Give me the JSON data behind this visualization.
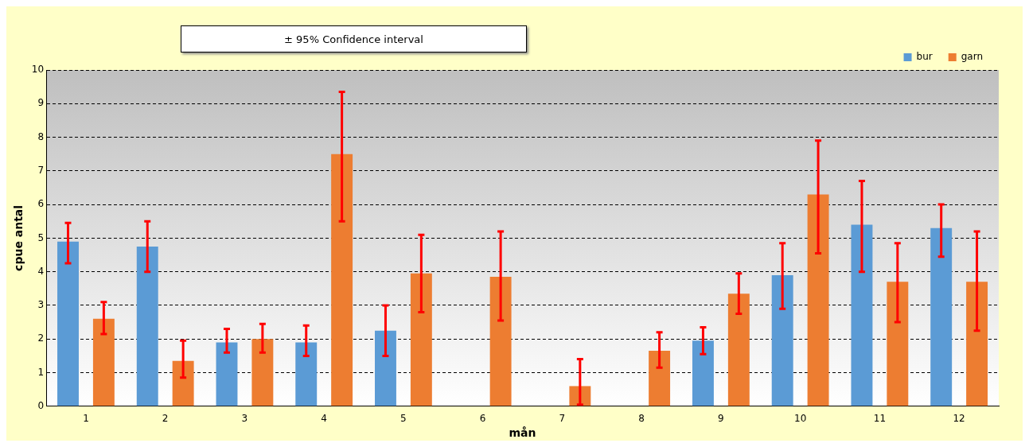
{
  "chart_data": {
    "type": "bar",
    "xlabel": "mån",
    "ylabel": "cpue antal",
    "annotations": [
      "± 95% Confidence interval"
    ],
    "categories": [
      "1",
      "2",
      "3",
      "4",
      "5",
      "6",
      "7",
      "8",
      "9",
      "10",
      "11",
      "12"
    ],
    "series": [
      {
        "name": "bur",
        "color": "#5b9bd5",
        "values": [
          4.9,
          4.75,
          1.9,
          1.9,
          2.25,
          0,
          0,
          0,
          1.95,
          3.9,
          5.4,
          5.3
        ],
        "errors": [
          [
            4.25,
            5.45
          ],
          [
            4.0,
            5.5
          ],
          [
            1.6,
            2.3
          ],
          [
            1.5,
            2.4
          ],
          [
            1.5,
            3.0
          ],
          null,
          null,
          null,
          [
            1.55,
            2.35
          ],
          [
            2.9,
            4.85
          ],
          [
            4.0,
            6.7
          ],
          [
            4.45,
            6.0
          ]
        ]
      },
      {
        "name": "garn",
        "color": "#ed7d31",
        "values": [
          2.6,
          1.35,
          2.0,
          7.5,
          3.95,
          3.85,
          0.6,
          1.65,
          3.35,
          6.3,
          3.7,
          3.7
        ],
        "errors": [
          [
            2.15,
            3.1
          ],
          [
            0.85,
            1.95
          ],
          [
            1.6,
            2.45
          ],
          [
            5.5,
            9.35
          ],
          [
            2.8,
            5.1
          ],
          [
            2.55,
            5.2
          ],
          [
            0.05,
            1.4
          ],
          [
            1.15,
            2.2
          ],
          [
            2.75,
            3.95
          ],
          [
            4.55,
            7.9
          ],
          [
            2.5,
            4.85
          ],
          [
            2.25,
            5.2
          ]
        ]
      }
    ],
    "ylim": [
      0,
      10
    ],
    "yticks": [
      0,
      1,
      2,
      3,
      4,
      5,
      6,
      7,
      8,
      9,
      10
    ],
    "grid": "y",
    "legend": "top right"
  }
}
